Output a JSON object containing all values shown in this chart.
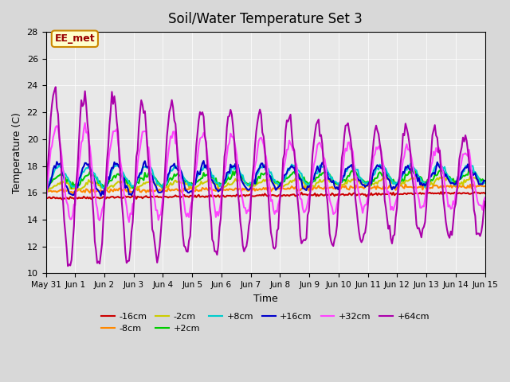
{
  "title": "Soil/Water Temperature Set 3",
  "xlabel": "Time",
  "ylabel": "Temperature (C)",
  "ylim": [
    10,
    28
  ],
  "yticks": [
    10,
    12,
    14,
    16,
    18,
    20,
    22,
    24,
    26,
    28
  ],
  "plot_bg_color": "#e8e8e8",
  "fig_bg_color": "#d8d8d8",
  "annotation_text": "EE_met",
  "annotation_bg": "#ffffcc",
  "annotation_border": "#cc8800",
  "series_keys": [
    "-16cm",
    "-8cm",
    "-2cm",
    "+2cm",
    "+8cm",
    "+16cm",
    "+32cm",
    "+64cm"
  ],
  "series_colors": [
    "#cc0000",
    "#ff8800",
    "#cccc00",
    "#00cc00",
    "#00cccc",
    "#0000cc",
    "#ff44ff",
    "#aa00aa"
  ],
  "series_lw": [
    1.5,
    1.5,
    1.5,
    1.5,
    1.5,
    1.5,
    1.5,
    1.5
  ],
  "x_tick_labels": [
    "May 31",
    "Jun 1",
    "Jun 2",
    "Jun 3",
    "Jun 4",
    "Jun 5",
    "Jun 6",
    "Jun 7",
    "Jun 8",
    "Jun 9",
    "Jun 10",
    "Jun 11",
    "Jun 12",
    "Jun 13",
    "Jun 14",
    "Jun 15"
  ],
  "n_days": 15,
  "samples_per_day": 24
}
